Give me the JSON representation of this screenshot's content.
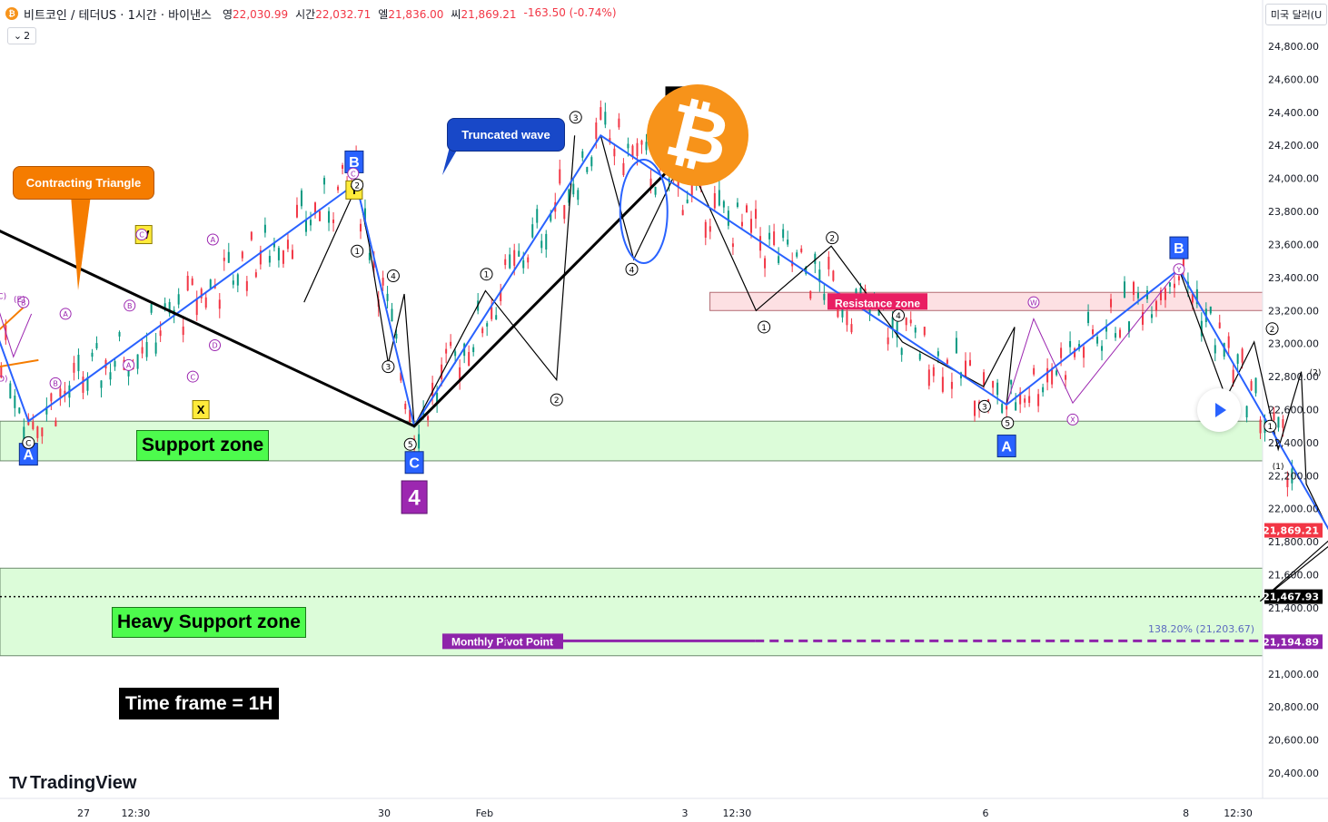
{
  "header": {
    "symbol_icon": "bitcoin-icon",
    "symbol_icon_glyph": "₿",
    "title": "비트코인 / 테더US · 1시간 · 바이낸스",
    "open_label": "영",
    "open_value": "22,030.99",
    "high_label": "시간",
    "high_value": "22,032.71",
    "low_label": "엘",
    "low_value": "21,836.00",
    "close_label": "씨",
    "close_value": "21,869.21",
    "change": "-163.50 (-0.74%)"
  },
  "interval_badge": {
    "icon": "chevron-down-icon",
    "glyph": "⌄",
    "count": "2"
  },
  "currency": "미국 달러(U",
  "logo": {
    "mark": "TV",
    "text": "TradingView"
  },
  "play_button": {
    "icon": "play-icon"
  },
  "btc_logo": {
    "glyph": "₿"
  },
  "labels": {
    "support_zone": "Support zone",
    "heavy_support_zone": "Heavy Support zone",
    "resistance_zone": "Resistance zone",
    "monthly_pivot": "Monthly Pivot Point",
    "pivot_marker": "P",
    "time_frame": "Time frame = 1H",
    "contracting_triangle": "Contracting Triangle",
    "truncated_wave": "Truncated wave",
    "fib_level": "138.20% (21,203.67)"
  },
  "colors": {
    "support_fill": "#dcfcd9",
    "resistance_fill": "#fde0e3",
    "resistance_label": "#e91e63",
    "elliott_blue": "#2962ff",
    "pivot_purple": "#8e24aa",
    "callout_orange": "#f57c00",
    "callout_blue": "#1848c8",
    "projection_green": "#00897b",
    "candle_up": "#089981",
    "candle_down": "#f23645"
  },
  "chart_data": {
    "type": "candlestick",
    "symbol": "BTC/USDT",
    "timeframe": "1H",
    "y_axis": {
      "min": 20400,
      "max": 24800,
      "ticks": [
        24800,
        24600,
        24400,
        24200,
        24000,
        23800,
        23600,
        23400,
        23200,
        23000,
        22800,
        22600,
        22400,
        22200,
        22000,
        21800,
        21600,
        21400,
        21200,
        21000,
        20800,
        20600,
        20400
      ],
      "tick_labels": [
        "24,800.00",
        "24,600.00",
        "24,400.00",
        "24,200.00",
        "24,000.00",
        "23,800.00",
        "23,600.00",
        "23,400.00",
        "23,200.00",
        "23,000.00",
        "22,800.00",
        "22,600.00",
        "22,400.00",
        "22,200.00",
        "22,000.00",
        "21,800.00",
        "21,600.00",
        "21,400.00",
        "21,200.00",
        "21,000.00",
        "20,800.00",
        "20,600.00",
        "20,400.00"
      ]
    },
    "x_axis": {
      "ticks": [
        {
          "label": "27",
          "t": 2.0
        },
        {
          "label": "12:30",
          "t": 2.52
        },
        {
          "label": "30",
          "t": 5.0
        },
        {
          "label": "Feb",
          "t": 6.0
        },
        {
          "label": "3",
          "t": 8.0
        },
        {
          "label": "12:30",
          "t": 8.52
        },
        {
          "label": "6",
          "t": 11.0
        },
        {
          "label": "8",
          "t": 13.0
        },
        {
          "label": "12:30",
          "t": 13.52
        }
      ],
      "t_min": 0.35,
      "t_max": 15.6
    },
    "price_tags": [
      {
        "label": "21,869.21",
        "value": 21869.21,
        "color": "#f23645"
      },
      {
        "label": "21,467.93",
        "value": 21467.93,
        "color": "#000000"
      },
      {
        "label": "21,194.89",
        "value": 21194.89,
        "color": "#8e24aa"
      }
    ],
    "zones": [
      {
        "name": "resistance",
        "low": 23200,
        "high": 23310,
        "t_start": 8.25,
        "t_end": 15.6
      },
      {
        "name": "support",
        "low": 22290,
        "high": 22530,
        "t_start": 0.35,
        "t_end": 15.6
      },
      {
        "name": "heavy_support",
        "low": 21110,
        "high": 21640,
        "t_start": 0.35,
        "t_end": 15.6
      }
    ],
    "pivot_line": {
      "value": 21200,
      "t_start": 6.3,
      "t_end": 15.6
    },
    "dotted_line": {
      "value": 21467.93
    },
    "black_waves": [
      {
        "t": 0.68,
        "v": 23820
      },
      {
        "t": 5.3,
        "v": 22500
      },
      {
        "t": 8.0,
        "v": 24150
      }
    ],
    "blue_waves": [
      {
        "t": 0.68,
        "v": 23820
      },
      {
        "t": 1.45,
        "v": 22530
      },
      {
        "t": 4.72,
        "v": 23970
      },
      {
        "t": 5.3,
        "v": 22500
      },
      {
        "t": 7.16,
        "v": 24260
      },
      {
        "t": 11.21,
        "v": 22630
      },
      {
        "t": 12.93,
        "v": 23450
      },
      {
        "t": 14.96,
        "v": 21310
      }
    ],
    "sub_waves": [
      [
        {
          "t": 7.16,
          "v": 24260
        },
        {
          "t": 7.49,
          "v": 23510
        },
        {
          "t": 8.0,
          "v": 24150
        },
        {
          "t": 8.71,
          "v": 23200
        },
        {
          "t": 9.46,
          "v": 23590
        },
        {
          "t": 10.17,
          "v": 23010
        },
        {
          "t": 10.98,
          "v": 22740
        },
        {
          "t": 11.29,
          "v": 23100
        },
        {
          "t": 11.21,
          "v": 22630
        }
      ],
      [
        {
          "t": 12.93,
          "v": 23450
        },
        {
          "t": 13.4,
          "v": 22670
        },
        {
          "t": 13.68,
          "v": 23010
        },
        {
          "t": 13.92,
          "v": 22360
        },
        {
          "t": 14.15,
          "v": 22830
        },
        {
          "t": 14.2,
          "v": 22150
        },
        {
          "t": 14.52,
          "v": 21750
        },
        {
          "t": 14.82,
          "v": 22020
        },
        {
          "t": 13.74,
          "v": 21440
        },
        {
          "t": 14.95,
          "v": 22030
        },
        {
          "t": 15.54,
          "v": 21310
        }
      ]
    ],
    "projection": {
      "from_t": 15.0,
      "from_v": 21310,
      "to_t": 16.93,
      "to_v": 22280
    },
    "wave_labels": [
      {
        "text": "3",
        "t": 8.0,
        "v": 24400,
        "style": "black-big"
      },
      {
        "text": "5",
        "t": 7.96,
        "v": 24160,
        "style": "purple-box"
      },
      {
        "text": "4",
        "t": 5.3,
        "v": 22070,
        "style": "purple-box"
      },
      {
        "text": "B",
        "t": 4.7,
        "v": 24100,
        "style": "blue-box"
      },
      {
        "text": "B",
        "t": 12.93,
        "v": 23580,
        "style": "blue-box"
      },
      {
        "text": "A",
        "t": 1.45,
        "v": 22330,
        "style": "blue-box"
      },
      {
        "text": "A",
        "t": 11.21,
        "v": 22380,
        "style": "blue-box"
      },
      {
        "text": "C",
        "t": 5.3,
        "v": 22280,
        "style": "blue-box"
      },
      {
        "text": "C",
        "t": 14.97,
        "v": 21070,
        "style": "blue-box"
      },
      {
        "text": "W",
        "t": 2.6,
        "v": 23660,
        "style": "yellow-box"
      },
      {
        "text": "X",
        "t": 3.17,
        "v": 22600,
        "style": "yellow-box"
      },
      {
        "text": "Y",
        "t": 4.7,
        "v": 23930,
        "style": "yellow-box"
      }
    ],
    "small_labels": [
      {
        "text": "3",
        "t": 6.91,
        "v": 24370
      },
      {
        "text": "2",
        "t": 4.73,
        "v": 23960
      },
      {
        "text": "1",
        "t": 4.73,
        "v": 23560
      },
      {
        "text": "4",
        "t": 5.09,
        "v": 23410
      },
      {
        "text": "3",
        "t": 5.04,
        "v": 22860
      },
      {
        "text": "1",
        "t": 6.02,
        "v": 23420
      },
      {
        "text": "2",
        "t": 6.72,
        "v": 22660
      },
      {
        "text": "4",
        "t": 7.47,
        "v": 23450
      },
      {
        "text": "5",
        "t": 7.98,
        "v": 24210
      },
      {
        "text": "5",
        "t": 5.26,
        "v": 22390
      },
      {
        "text": "2",
        "t": 9.47,
        "v": 23640
      },
      {
        "text": "1",
        "t": 8.79,
        "v": 23100
      },
      {
        "text": "4",
        "t": 10.13,
        "v": 23170
      },
      {
        "text": "3",
        "t": 10.99,
        "v": 22620
      },
      {
        "text": "5",
        "t": 11.22,
        "v": 22520
      },
      {
        "text": "2",
        "t": 13.86,
        "v": 23090
      },
      {
        "text": "1",
        "t": 13.84,
        "v": 22500
      },
      {
        "text": "4",
        "t": 15.8,
        "v": 22110
      },
      {
        "text": "5",
        "t": 14.98,
        "v": 21390
      },
      {
        "text": "5",
        "t": 14.81,
        "v": 21350
      },
      {
        "text": "C",
        "t": 1.45,
        "v": 22400
      }
    ],
    "paren_labels": [
      {
        "text": "(2)",
        "t": 14.29,
        "v": 22810
      },
      {
        "text": "(1)",
        "t": 13.92,
        "v": 22240
      },
      {
        "text": "(4)",
        "t": 14.72,
        "v": 22110
      },
      {
        "text": "(3)",
        "t": 14.55,
        "v": 21660
      },
      {
        "text": "(5)",
        "t": 14.82,
        "v": 21470
      },
      {
        "text": "(A)",
        "t": 0.72,
        "v": 23310
      },
      {
        "text": "(C)",
        "t": 1.17,
        "v": 23270
      },
      {
        "text": "(B)",
        "t": 1.03,
        "v": 22770
      },
      {
        "text": "(D)",
        "t": 1.18,
        "v": 22770
      },
      {
        "text": "(E)",
        "t": 1.36,
        "v": 23250
      }
    ],
    "purple_labels": [
      {
        "text": "A",
        "t": 0.67,
        "v": 22740
      },
      {
        "text": "A",
        "t": 1.82,
        "v": 23180
      },
      {
        "text": "B",
        "t": 1.72,
        "v": 22760
      },
      {
        "text": "B",
        "t": 2.46,
        "v": 23230
      },
      {
        "text": "B",
        "t": 1.4,
        "v": 23250
      },
      {
        "text": "C",
        "t": 2.58,
        "v": 23660
      },
      {
        "text": "C",
        "t": 3.09,
        "v": 22800
      },
      {
        "text": "C",
        "t": 4.69,
        "v": 24030
      },
      {
        "text": "A",
        "t": 3.29,
        "v": 23630
      },
      {
        "text": "A",
        "t": 2.45,
        "v": 22870
      },
      {
        "text": "D",
        "t": 3.31,
        "v": 22990
      },
      {
        "text": "W",
        "t": 11.48,
        "v": 23250
      },
      {
        "text": "X",
        "t": 11.87,
        "v": 22540
      },
      {
        "text": "Y",
        "t": 12.93,
        "v": 23450
      }
    ]
  }
}
